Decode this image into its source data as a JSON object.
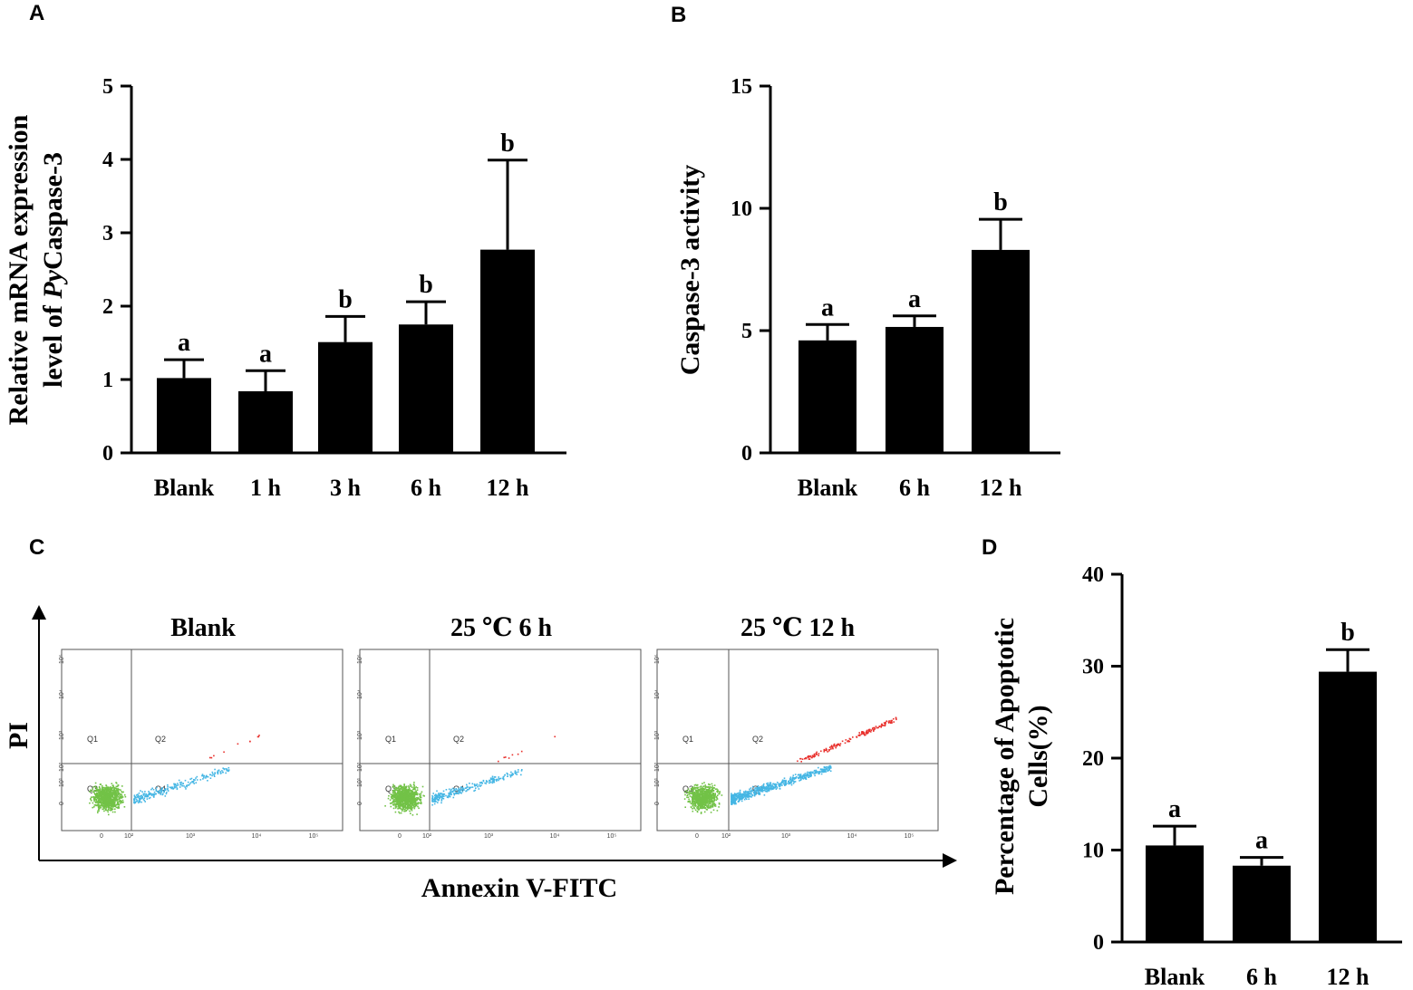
{
  "chart_data": [
    {
      "panel": "A",
      "type": "bar",
      "categories": [
        "Blank",
        "1 h",
        "3 h",
        "6 h",
        "12 h"
      ],
      "values": [
        1.02,
        0.84,
        1.51,
        1.75,
        2.77
      ],
      "errors": [
        0.25,
        0.28,
        0.35,
        0.31,
        1.22
      ],
      "significance": [
        "a",
        "a",
        "b",
        "b",
        "b"
      ],
      "ylabel_line1": "Relative mRNA expression",
      "ylabel_line2_prefix": "level of ",
      "ylabel_line2_italic": "Py",
      "ylabel_line2_suffix": "Caspase-3",
      "ylim": [
        0,
        5
      ],
      "yticks": [
        0,
        1,
        2,
        3,
        4,
        5
      ]
    },
    {
      "panel": "B",
      "type": "bar",
      "categories": [
        "Blank",
        "6 h",
        "12 h"
      ],
      "values": [
        4.6,
        5.15,
        8.3
      ],
      "errors": [
        0.65,
        0.45,
        1.25
      ],
      "significance": [
        "a",
        "a",
        "b"
      ],
      "ylabel": "Caspase-3 activity",
      "ylim": [
        0,
        15
      ],
      "yticks": [
        0,
        5,
        10,
        15
      ]
    },
    {
      "panel": "C",
      "type": "scatter",
      "title_x": "Annexin V-FITC",
      "title_y": "PI",
      "plots": [
        {
          "title": "Blank",
          "quadrants": [
            "Q1",
            "Q2",
            "Q3",
            "Q4"
          ]
        },
        {
          "title": "25 ℃ 6 h",
          "quadrants": [
            "Q1",
            "Q2",
            "Q3",
            "Q4"
          ]
        },
        {
          "title": "25 ℃ 12 h",
          "quadrants": [
            "Q1",
            "Q2",
            "Q3",
            "Q4"
          ]
        }
      ],
      "x_tick_labels": [
        "0",
        "10²",
        "10³",
        "10⁴",
        "10⁵"
      ],
      "y_tick_labels": [
        "10⁵",
        "10⁴",
        "10³",
        "10²",
        "10¹",
        "0"
      ],
      "colors": {
        "live": "#72c247",
        "early_apoptotic": "#45b6e4",
        "late_apoptotic": "#e8302c"
      }
    },
    {
      "panel": "D",
      "type": "bar",
      "categories": [
        "Blank",
        "6 h",
        "12 h"
      ],
      "values": [
        10.5,
        8.3,
        29.4
      ],
      "errors": [
        2.1,
        0.9,
        2.4
      ],
      "significance": [
        "a",
        "a",
        "b"
      ],
      "ylabel_line1": "Percentage of Apoptotic",
      "ylabel_line2": "Cells(%)",
      "ylim": [
        0,
        40
      ],
      "yticks": [
        0,
        10,
        20,
        30,
        40
      ]
    }
  ],
  "panel_labels": [
    "A",
    "B",
    "C",
    "D"
  ]
}
